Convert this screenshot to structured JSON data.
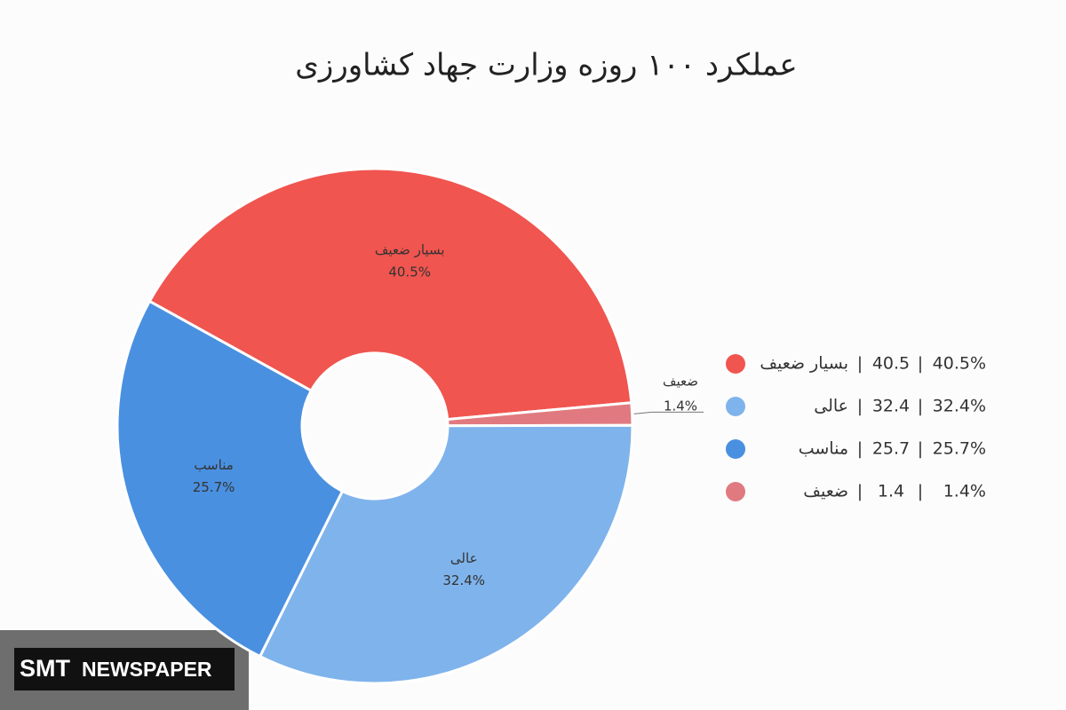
{
  "chart_data": {
    "type": "donut",
    "title": "عملکرد ۱۰۰ روزه وزارت جهاد کشاورزی",
    "categories": [
      "بسیار ضعیف",
      "عالی",
      "مناسب",
      "ضعیف"
    ],
    "values": [
      40.5,
      32.4,
      25.7,
      1.4
    ],
    "value_labels": [
      "40.5%",
      "32.4%",
      "25.7%",
      "1.4%"
    ],
    "colors": [
      "#f0554f",
      "#7fb3ec",
      "#4a90e0",
      "#e07a80"
    ],
    "legend": "right"
  },
  "watermark": {
    "brand": "SMT",
    "text": "NEWSPAPER"
  }
}
